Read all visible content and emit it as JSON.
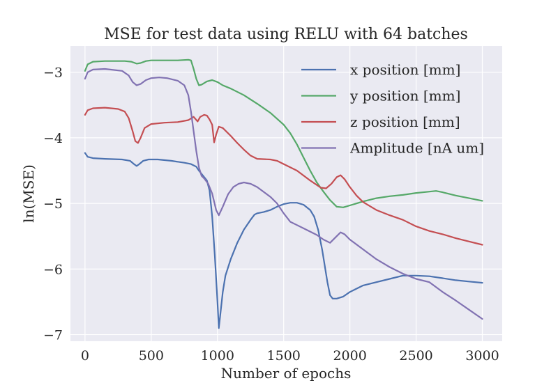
{
  "chart_data": {
    "type": "line",
    "title": "MSE for test data using RELU with 64 batches",
    "xlabel": "Number of epochs",
    "ylabel": "ln(MSE)",
    "xlim": [
      -110,
      3150
    ],
    "ylim": [
      -7.1,
      -2.6
    ],
    "xticks": [
      0,
      500,
      1000,
      1500,
      2000,
      2500,
      3000
    ],
    "yticks": [
      -3,
      -4,
      -5,
      -6,
      -7
    ],
    "xtick_labels": [
      "0",
      "500",
      "1000",
      "1500",
      "2000",
      "2500",
      "3000"
    ],
    "ytick_labels": [
      "−3",
      "−4",
      "−5",
      "−6",
      "−7"
    ],
    "grid": true,
    "legend_position": "top-right",
    "series": [
      {
        "name": "x position [mm]",
        "color": "#4c72b0",
        "points": [
          [
            0,
            -4.23
          ],
          [
            20,
            -4.29
          ],
          [
            60,
            -4.31
          ],
          [
            150,
            -4.32
          ],
          [
            280,
            -4.33
          ],
          [
            340,
            -4.35
          ],
          [
            370,
            -4.4
          ],
          [
            390,
            -4.43
          ],
          [
            410,
            -4.4
          ],
          [
            440,
            -4.35
          ],
          [
            480,
            -4.33
          ],
          [
            550,
            -4.33
          ],
          [
            650,
            -4.35
          ],
          [
            750,
            -4.38
          ],
          [
            800,
            -4.4
          ],
          [
            840,
            -4.44
          ],
          [
            860,
            -4.5
          ],
          [
            880,
            -4.55
          ],
          [
            900,
            -4.6
          ],
          [
            920,
            -4.65
          ],
          [
            940,
            -4.8
          ],
          [
            960,
            -5.2
          ],
          [
            980,
            -5.8
          ],
          [
            1000,
            -6.5
          ],
          [
            1010,
            -6.9
          ],
          [
            1020,
            -6.72
          ],
          [
            1040,
            -6.35
          ],
          [
            1060,
            -6.1
          ],
          [
            1100,
            -5.85
          ],
          [
            1150,
            -5.6
          ],
          [
            1200,
            -5.4
          ],
          [
            1250,
            -5.25
          ],
          [
            1280,
            -5.17
          ],
          [
            1300,
            -5.15
          ],
          [
            1350,
            -5.13
          ],
          [
            1400,
            -5.1
          ],
          [
            1450,
            -5.05
          ],
          [
            1500,
            -5.01
          ],
          [
            1550,
            -4.99
          ],
          [
            1600,
            -4.99
          ],
          [
            1650,
            -5.02
          ],
          [
            1700,
            -5.1
          ],
          [
            1730,
            -5.2
          ],
          [
            1760,
            -5.4
          ],
          [
            1790,
            -5.7
          ],
          [
            1810,
            -5.95
          ],
          [
            1830,
            -6.2
          ],
          [
            1850,
            -6.4
          ],
          [
            1870,
            -6.45
          ],
          [
            1900,
            -6.45
          ],
          [
            1950,
            -6.42
          ],
          [
            2000,
            -6.35
          ],
          [
            2100,
            -6.25
          ],
          [
            2200,
            -6.2
          ],
          [
            2300,
            -6.15
          ],
          [
            2400,
            -6.1
          ],
          [
            2500,
            -6.1
          ],
          [
            2600,
            -6.11
          ],
          [
            2700,
            -6.14
          ],
          [
            2800,
            -6.17
          ],
          [
            2900,
            -6.19
          ],
          [
            3000,
            -6.21
          ]
        ]
      },
      {
        "name": "y position [mm]",
        "color": "#55a868",
        "points": [
          [
            0,
            -2.98
          ],
          [
            20,
            -2.88
          ],
          [
            60,
            -2.84
          ],
          [
            150,
            -2.83
          ],
          [
            300,
            -2.83
          ],
          [
            350,
            -2.84
          ],
          [
            390,
            -2.87
          ],
          [
            420,
            -2.86
          ],
          [
            460,
            -2.83
          ],
          [
            500,
            -2.82
          ],
          [
            600,
            -2.82
          ],
          [
            700,
            -2.82
          ],
          [
            780,
            -2.81
          ],
          [
            800,
            -2.82
          ],
          [
            820,
            -2.95
          ],
          [
            840,
            -3.1
          ],
          [
            860,
            -3.2
          ],
          [
            880,
            -3.19
          ],
          [
            920,
            -3.14
          ],
          [
            960,
            -3.12
          ],
          [
            1000,
            -3.15
          ],
          [
            1040,
            -3.2
          ],
          [
            1100,
            -3.25
          ],
          [
            1200,
            -3.35
          ],
          [
            1300,
            -3.48
          ],
          [
            1400,
            -3.62
          ],
          [
            1500,
            -3.8
          ],
          [
            1550,
            -3.93
          ],
          [
            1600,
            -4.1
          ],
          [
            1650,
            -4.3
          ],
          [
            1700,
            -4.5
          ],
          [
            1750,
            -4.68
          ],
          [
            1800,
            -4.82
          ],
          [
            1850,
            -4.95
          ],
          [
            1900,
            -5.05
          ],
          [
            1950,
            -5.06
          ],
          [
            2000,
            -5.03
          ],
          [
            2100,
            -4.97
          ],
          [
            2200,
            -4.92
          ],
          [
            2300,
            -4.89
          ],
          [
            2400,
            -4.87
          ],
          [
            2500,
            -4.84
          ],
          [
            2600,
            -4.82
          ],
          [
            2650,
            -4.81
          ],
          [
            2700,
            -4.83
          ],
          [
            2800,
            -4.88
          ],
          [
            2900,
            -4.92
          ],
          [
            3000,
            -4.96
          ]
        ]
      },
      {
        "name": "z position [mm]",
        "color": "#c44e52",
        "points": [
          [
            0,
            -3.65
          ],
          [
            20,
            -3.58
          ],
          [
            60,
            -3.55
          ],
          [
            150,
            -3.54
          ],
          [
            250,
            -3.56
          ],
          [
            300,
            -3.6
          ],
          [
            330,
            -3.7
          ],
          [
            360,
            -3.9
          ],
          [
            380,
            -4.05
          ],
          [
            400,
            -4.08
          ],
          [
            420,
            -4.0
          ],
          [
            450,
            -3.85
          ],
          [
            500,
            -3.79
          ],
          [
            600,
            -3.77
          ],
          [
            700,
            -3.76
          ],
          [
            780,
            -3.73
          ],
          [
            820,
            -3.68
          ],
          [
            850,
            -3.75
          ],
          [
            870,
            -3.68
          ],
          [
            900,
            -3.65
          ],
          [
            920,
            -3.66
          ],
          [
            940,
            -3.72
          ],
          [
            960,
            -3.8
          ],
          [
            975,
            -4.07
          ],
          [
            990,
            -3.95
          ],
          [
            1010,
            -3.83
          ],
          [
            1040,
            -3.85
          ],
          [
            1100,
            -3.97
          ],
          [
            1150,
            -4.08
          ],
          [
            1200,
            -4.18
          ],
          [
            1250,
            -4.27
          ],
          [
            1300,
            -4.32
          ],
          [
            1400,
            -4.33
          ],
          [
            1450,
            -4.35
          ],
          [
            1500,
            -4.4
          ],
          [
            1600,
            -4.5
          ],
          [
            1700,
            -4.65
          ],
          [
            1780,
            -4.76
          ],
          [
            1820,
            -4.77
          ],
          [
            1860,
            -4.7
          ],
          [
            1900,
            -4.6
          ],
          [
            1930,
            -4.57
          ],
          [
            1960,
            -4.63
          ],
          [
            2000,
            -4.75
          ],
          [
            2050,
            -4.88
          ],
          [
            2100,
            -4.98
          ],
          [
            2200,
            -5.1
          ],
          [
            2300,
            -5.18
          ],
          [
            2400,
            -5.25
          ],
          [
            2500,
            -5.35
          ],
          [
            2600,
            -5.42
          ],
          [
            2700,
            -5.47
          ],
          [
            2800,
            -5.53
          ],
          [
            2900,
            -5.58
          ],
          [
            3000,
            -5.63
          ]
        ]
      },
      {
        "name": "Amplitude [nA um]",
        "color": "#8172b2",
        "points": [
          [
            0,
            -3.1
          ],
          [
            20,
            -3.0
          ],
          [
            60,
            -2.96
          ],
          [
            150,
            -2.95
          ],
          [
            280,
            -2.98
          ],
          [
            330,
            -3.05
          ],
          [
            360,
            -3.15
          ],
          [
            390,
            -3.2
          ],
          [
            420,
            -3.18
          ],
          [
            460,
            -3.12
          ],
          [
            500,
            -3.09
          ],
          [
            560,
            -3.08
          ],
          [
            620,
            -3.09
          ],
          [
            700,
            -3.13
          ],
          [
            750,
            -3.2
          ],
          [
            780,
            -3.35
          ],
          [
            800,
            -3.6
          ],
          [
            820,
            -3.9
          ],
          [
            840,
            -4.2
          ],
          [
            860,
            -4.45
          ],
          [
            880,
            -4.58
          ],
          [
            900,
            -4.62
          ],
          [
            930,
            -4.7
          ],
          [
            960,
            -4.85
          ],
          [
            990,
            -5.1
          ],
          [
            1010,
            -5.18
          ],
          [
            1040,
            -5.05
          ],
          [
            1080,
            -4.86
          ],
          [
            1120,
            -4.75
          ],
          [
            1160,
            -4.7
          ],
          [
            1200,
            -4.68
          ],
          [
            1250,
            -4.7
          ],
          [
            1300,
            -4.75
          ],
          [
            1400,
            -4.9
          ],
          [
            1450,
            -5.0
          ],
          [
            1500,
            -5.15
          ],
          [
            1550,
            -5.28
          ],
          [
            1600,
            -5.33
          ],
          [
            1650,
            -5.38
          ],
          [
            1700,
            -5.43
          ],
          [
            1750,
            -5.48
          ],
          [
            1800,
            -5.55
          ],
          [
            1850,
            -5.6
          ],
          [
            1900,
            -5.5
          ],
          [
            1930,
            -5.44
          ],
          [
            1960,
            -5.47
          ],
          [
            2000,
            -5.55
          ],
          [
            2100,
            -5.7
          ],
          [
            2200,
            -5.85
          ],
          [
            2300,
            -5.97
          ],
          [
            2400,
            -6.07
          ],
          [
            2500,
            -6.15
          ],
          [
            2600,
            -6.2
          ],
          [
            2700,
            -6.35
          ],
          [
            2800,
            -6.48
          ],
          [
            2900,
            -6.62
          ],
          [
            3000,
            -6.76
          ]
        ]
      }
    ]
  }
}
